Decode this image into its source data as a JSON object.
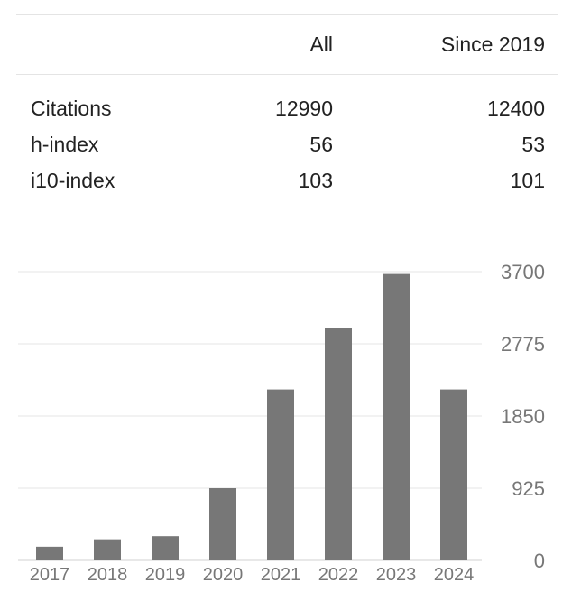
{
  "stats": {
    "columns": [
      "",
      "All",
      "Since 2019"
    ],
    "rows": [
      {
        "label": "Citations",
        "all": "12990",
        "since": "12400"
      },
      {
        "label": "h-index",
        "all": "56",
        "since": "53"
      },
      {
        "label": "i10-index",
        "all": "103",
        "since": "101"
      }
    ]
  },
  "chart_data": {
    "type": "bar",
    "title": "",
    "xlabel": "",
    "ylabel": "",
    "categories": [
      "2017",
      "2018",
      "2019",
      "2020",
      "2021",
      "2022",
      "2023",
      "2024"
    ],
    "values": [
      175,
      270,
      310,
      925,
      2190,
      2980,
      3670,
      2190
    ],
    "yticks": [
      0,
      925,
      1850,
      2775,
      3700
    ],
    "ylim": [
      0,
      3700
    ],
    "grid": true,
    "y_axis_position": "right",
    "bar_color": "#777777"
  }
}
